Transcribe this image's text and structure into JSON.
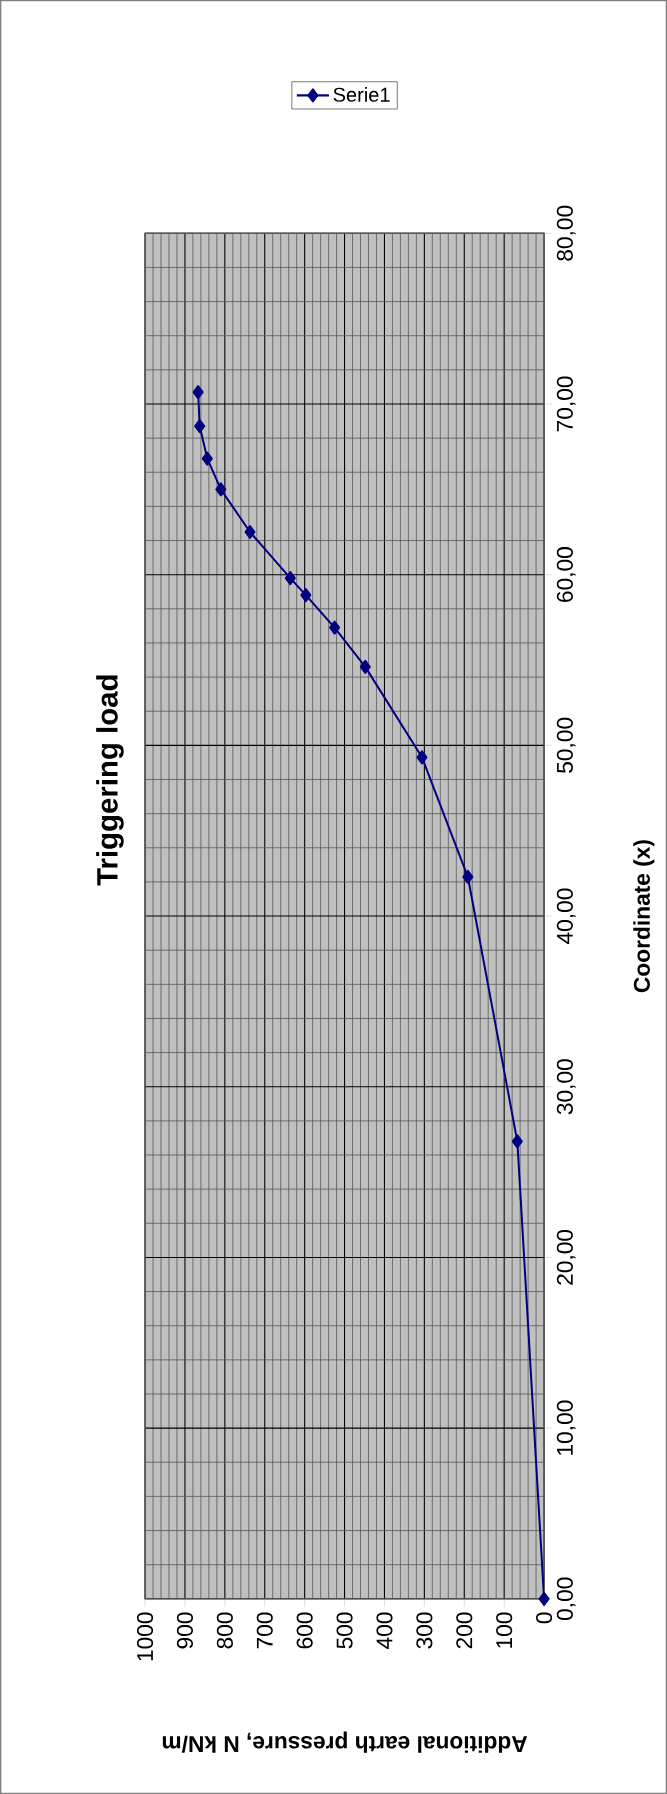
{
  "chart_data": {
    "type": "line",
    "title": "Triggering load",
    "xlabel": "Additional earth pressure, N kN/m",
    "ylabel": "Coordinate (x)",
    "x": [
      0,
      67,
      191,
      306,
      448,
      525,
      597,
      636,
      737,
      810,
      844,
      863,
      867
    ],
    "series": [
      {
        "name": "Serie1",
        "color": "#000080",
        "values": [
          0.0,
          26.8,
          42.3,
          49.3,
          54.6,
          56.9,
          58.8,
          59.8,
          62.5,
          65.0,
          66.8,
          68.7,
          70.7
        ]
      }
    ],
    "xlim": [
      1000,
      0
    ],
    "ylim": [
      0,
      80
    ],
    "yticks": [
      {
        "value": 0,
        "label": "0,00"
      },
      {
        "value": 10,
        "label": "10,00"
      },
      {
        "value": 20,
        "label": "20,00"
      },
      {
        "value": 30,
        "label": "30,00"
      },
      {
        "value": 40,
        "label": "40,00"
      },
      {
        "value": 50,
        "label": "50,00"
      },
      {
        "value": 60,
        "label": "60,00"
      },
      {
        "value": 70,
        "label": "70,00"
      },
      {
        "value": 80,
        "label": "80,00"
      }
    ],
    "xticks": [
      1000,
      900,
      800,
      700,
      600,
      500,
      400,
      300,
      200,
      100,
      0
    ],
    "grid": true,
    "legend": "top right",
    "marker": "diamond",
    "line_style": "solid"
  }
}
